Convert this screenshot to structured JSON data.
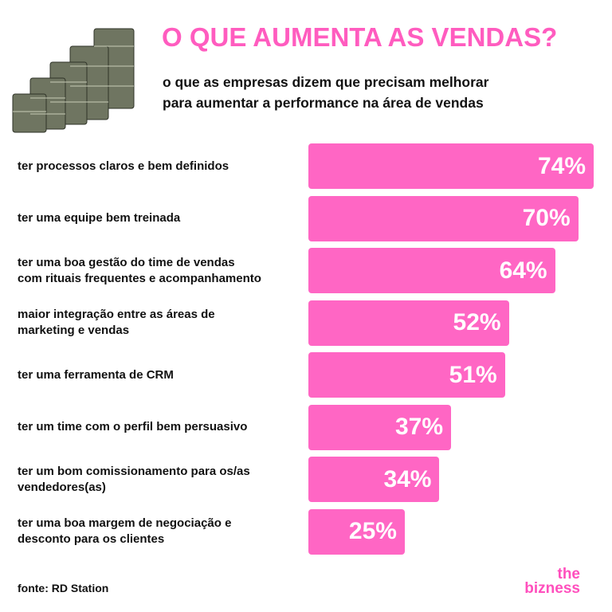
{
  "chart_data": {
    "type": "bar",
    "orientation": "horizontal",
    "title": "O QUE AUMENTA AS VENDAS?",
    "subtitle": "o que as empresas dizem que precisam melhorar\npara aumentar a performance na área de vendas",
    "categories": [
      "ter processos claros e bem definidos",
      "ter uma equipe bem treinada",
      "ter uma boa gestão do time de vendas\ncom rituais frequentes e acompanhamento",
      "maior integração entre as áreas de\nmarketing e vendas",
      "ter uma ferramenta de CRM",
      "ter um time com o perfil bem persuasivo",
      "ter um bom comissionamento para os/as\nvendedores(as)",
      "ter uma boa margem de negociação e\ndesconto para os clientes"
    ],
    "values": [
      74,
      70,
      64,
      52,
      51,
      37,
      34,
      25
    ],
    "value_labels": [
      "74%",
      "70%",
      "64%",
      "52%",
      "51%",
      "37%",
      "34%",
      "25%"
    ],
    "color": "#ff66c4",
    "source": "fonte: RD Station",
    "brand": [
      "the",
      "bizness"
    ]
  }
}
